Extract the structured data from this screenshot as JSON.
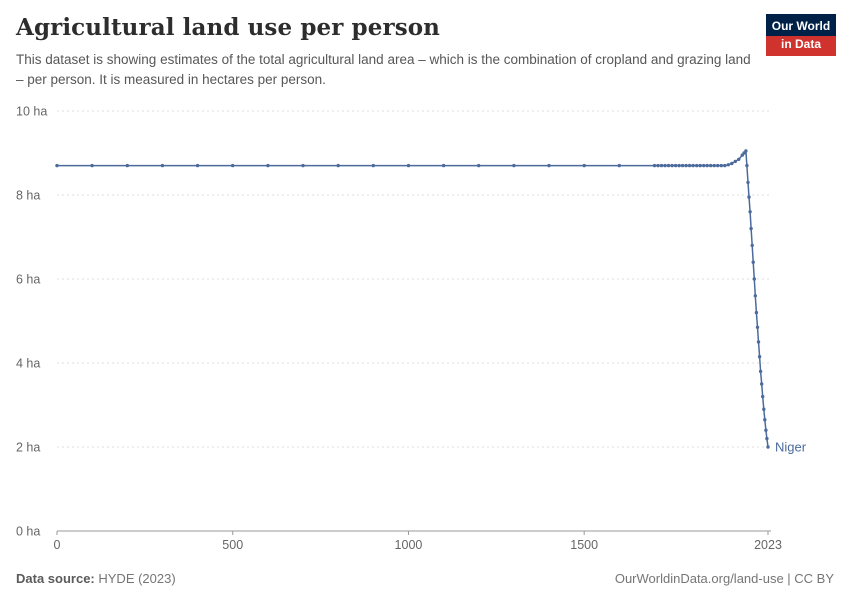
{
  "header": {
    "title": "Agricultural land use per person",
    "subtitle": "This dataset is showing estimates of the total agricultural land area – which is the combination of cropland and grazing land – per person. It is measured in hectares per person.",
    "logo": {
      "line1": "Our World",
      "line2": "in Data"
    }
  },
  "footer": {
    "source_label": "Data source:",
    "source_value": "HYDE (2023)",
    "right_text": "OurWorldinData.org/land-use | CC BY"
  },
  "colors": {
    "series": "#4C6A9C",
    "grid": "#dcdcdc",
    "axis": "#999999",
    "tick_text": "#666666",
    "logo_navy": "#002147",
    "logo_red": "#d0332e"
  },
  "chart_data": {
    "type": "line",
    "title": "Agricultural land use per person",
    "ylabel": "hectares per person",
    "xlim": [
      0,
      2023
    ],
    "ylim": [
      0,
      10
    ],
    "grid": true,
    "legend_position": "end-of-line-label",
    "yticks": [
      {
        "value": 0,
        "label": "0 ha"
      },
      {
        "value": 2,
        "label": "2 ha"
      },
      {
        "value": 4,
        "label": "4 ha"
      },
      {
        "value": 6,
        "label": "6 ha"
      },
      {
        "value": 8,
        "label": "8 ha"
      },
      {
        "value": 10,
        "label": "10 ha"
      }
    ],
    "xticks": [
      {
        "value": 0,
        "label": "0"
      },
      {
        "value": 500,
        "label": "500"
      },
      {
        "value": 1000,
        "label": "1000"
      },
      {
        "value": 1500,
        "label": "1500"
      },
      {
        "value": 2023,
        "label": "2023"
      }
    ],
    "series": [
      {
        "name": "Niger",
        "color": "#4C6A9C",
        "x": [
          0,
          100,
          200,
          300,
          400,
          500,
          600,
          700,
          800,
          900,
          1000,
          1100,
          1200,
          1300,
          1400,
          1500,
          1600,
          1700,
          1710,
          1720,
          1730,
          1740,
          1750,
          1760,
          1770,
          1780,
          1790,
          1800,
          1810,
          1820,
          1830,
          1840,
          1850,
          1860,
          1870,
          1880,
          1890,
          1900,
          1910,
          1920,
          1930,
          1940,
          1950,
          1955,
          1960,
          1963,
          1966,
          1969,
          1972,
          1975,
          1978,
          1981,
          1984,
          1987,
          1990,
          1993,
          1996,
          1999,
          2002,
          2005,
          2008,
          2011,
          2014,
          2017,
          2020,
          2023
        ],
        "y": [
          8.7,
          8.7,
          8.7,
          8.7,
          8.7,
          8.7,
          8.7,
          8.7,
          8.7,
          8.7,
          8.7,
          8.7,
          8.7,
          8.7,
          8.7,
          8.7,
          8.7,
          8.7,
          8.7,
          8.7,
          8.7,
          8.7,
          8.7,
          8.7,
          8.7,
          8.7,
          8.7,
          8.7,
          8.7,
          8.7,
          8.7,
          8.7,
          8.7,
          8.7,
          8.7,
          8.7,
          8.7,
          8.7,
          8.72,
          8.75,
          8.8,
          8.85,
          8.95,
          9.0,
          9.05,
          8.7,
          8.3,
          7.95,
          7.6,
          7.2,
          6.8,
          6.4,
          6.0,
          5.6,
          5.2,
          4.85,
          4.5,
          4.15,
          3.8,
          3.5,
          3.2,
          2.9,
          2.65,
          2.4,
          2.2,
          2.0
        ]
      }
    ]
  }
}
